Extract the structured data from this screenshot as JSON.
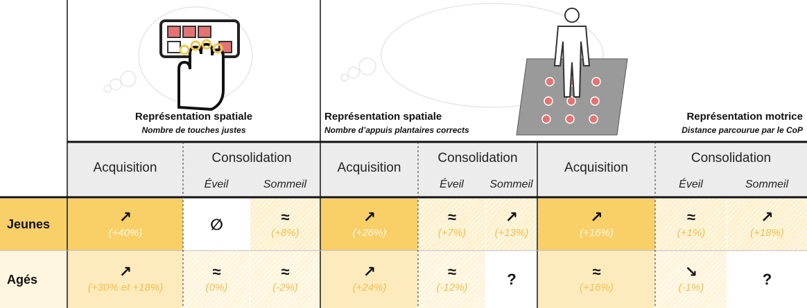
{
  "tasks": [
    {
      "title": "Représentation spatiale",
      "subtitle": "Nombre de touches justes",
      "align": "center"
    },
    {
      "title": "Représentation spatiale",
      "subtitle": "Nombre d’appuis plantaires corrects",
      "align": "left"
    },
    {
      "title": "Représentation motrice",
      "subtitle": "Distance parcourue par le CoP",
      "align": "right"
    }
  ],
  "groups": [
    {
      "acquisition": "Acquisition",
      "consolidation": "Consolidation",
      "eveil": "Éveil",
      "sommeil": "Sommeil"
    },
    {
      "acquisition": "Acquisition",
      "consolidation": "Consolidation",
      "eveil": "Éveil",
      "sommeil": "Sommeil"
    },
    {
      "acquisition": "Acquisition",
      "consolidation": "Consolidation",
      "eveil": "Éveil",
      "sommeil": "Sommeil"
    }
  ],
  "rows": [
    {
      "label": "Jeunes",
      "color": "#f9cf67",
      "cells": [
        {
          "symbol": "↗",
          "value": "(+40%)",
          "color": "#f9cf67",
          "hatched": false,
          "text_color": "#fff8e6"
        },
        {
          "symbol": "∅",
          "color": "#ffffff",
          "hatched": false
        },
        {
          "symbol": "≈",
          "value": "(+8%)",
          "color": "#fdf0cc",
          "hatched": true,
          "text_color": "#f2c04f"
        },
        {
          "symbol": "↗",
          "value": "(+26%)",
          "color": "#f9cf67",
          "hatched": false,
          "text_color": "#fff8e6"
        },
        {
          "symbol": "≈",
          "value": "(+7%)",
          "color": "#fdf0cc",
          "hatched": true,
          "text_color": "#f2c04f"
        },
        {
          "symbol": "↗",
          "value": "(+13%)",
          "color": "#fdf0cc",
          "hatched": true,
          "text_color": "#f2c04f"
        },
        {
          "symbol": "↗",
          "value": "(+16%)",
          "color": "#f9cf67",
          "hatched": false,
          "text_color": "#fff8e6"
        },
        {
          "symbol": "≈",
          "value": "(+1%)",
          "color": "#fdf0cc",
          "hatched": true,
          "text_color": "#f2c04f"
        },
        {
          "symbol": "↗",
          "value": "(+18%)",
          "color": "#fdf0cc",
          "hatched": true,
          "text_color": "#f2c04f"
        }
      ]
    },
    {
      "label": "Agés",
      "color": "#fff6df",
      "cells": [
        {
          "symbol": "↗",
          "value": "(+30% et +18%)",
          "color": "#feebbd",
          "hatched": false,
          "text_color": "#f2bf4c"
        },
        {
          "symbol": "≈",
          "value": "(0%)",
          "color": "#fef4da",
          "hatched": true,
          "text_color": "#f2c04f"
        },
        {
          "symbol": "≈",
          "value": "(-2%)",
          "color": "#fef4da",
          "hatched": true,
          "text_color": "#f2c04f"
        },
        {
          "symbol": "↗",
          "value": "(+24%)",
          "color": "#feebbd",
          "hatched": false,
          "text_color": "#f2bf4c"
        },
        {
          "symbol": "≈",
          "value": "(-12%)",
          "color": "#fef4da",
          "hatched": true,
          "text_color": "#f2c04f"
        },
        {
          "symbol": "?",
          "color": "#ffffff",
          "hatched": false
        },
        {
          "symbol": "≈",
          "value": "(+16%)",
          "color": "#feebbd",
          "hatched": false,
          "text_color": "#f2bf4c"
        },
        {
          "symbol": "↘",
          "value": "(-1%)",
          "color": "#fef4da",
          "hatched": true,
          "text_color": "#f2c04f"
        },
        {
          "symbol": "?",
          "color": "#ffffff",
          "hatched": false
        }
      ]
    }
  ]
}
